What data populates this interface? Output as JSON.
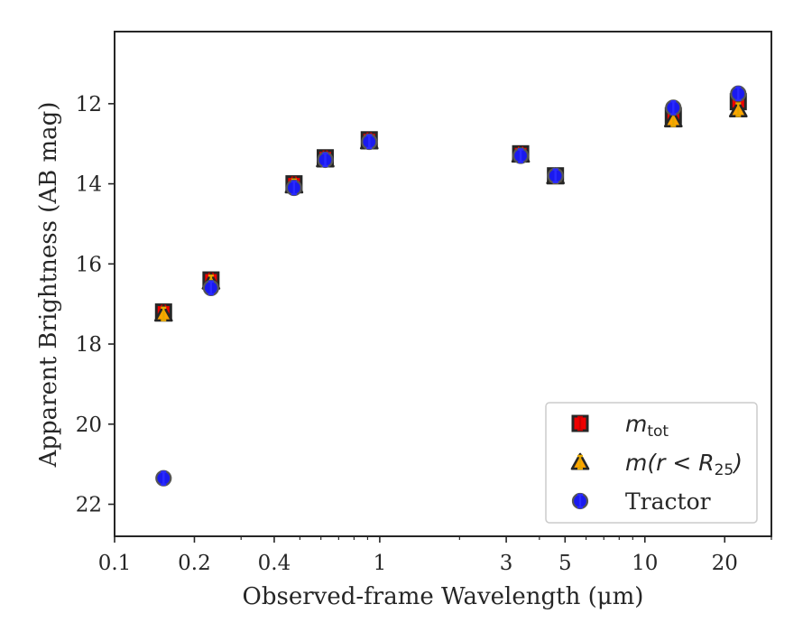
{
  "chart_data": {
    "type": "scatter",
    "xlabel": "Observed-frame Wavelength (μm)",
    "ylabel": "Apparent Brightness (AB mag)",
    "xscale": "log",
    "yinverted": true,
    "xlim": [
      0.1,
      30
    ],
    "ylim": [
      22.8,
      10.2
    ],
    "xticks": [
      {
        "value": 0.1,
        "label": "0.1"
      },
      {
        "value": 0.2,
        "label": "0.2"
      },
      {
        "value": 0.4,
        "label": "0.4"
      },
      {
        "value": 1,
        "label": "1"
      },
      {
        "value": 3,
        "label": "3"
      },
      {
        "value": 5,
        "label": "5"
      },
      {
        "value": 10,
        "label": "10"
      },
      {
        "value": 20,
        "label": "20"
      }
    ],
    "yticks": [
      {
        "value": 12,
        "label": "12"
      },
      {
        "value": 14,
        "label": "14"
      },
      {
        "value": 16,
        "label": "16"
      },
      {
        "value": 18,
        "label": "18"
      },
      {
        "value": 20,
        "label": "20"
      },
      {
        "value": 22,
        "label": "22"
      }
    ],
    "legend_position": "lower-right",
    "grid": false,
    "series": [
      {
        "name": "m_tot",
        "legend_main": "m",
        "legend_sub": "tot",
        "marker": "square",
        "color": "#ee0000",
        "errcolor": "#cc0000",
        "points": [
          {
            "x": 0.153,
            "y": 17.2
          },
          {
            "x": 0.231,
            "y": 16.4
          },
          {
            "x": 0.475,
            "y": 14.0
          },
          {
            "x": 0.623,
            "y": 13.35
          },
          {
            "x": 0.913,
            "y": 12.9
          },
          {
            "x": 3.4,
            "y": 13.25
          },
          {
            "x": 4.6,
            "y": 13.8
          },
          {
            "x": 12.8,
            "y": 12.3
          },
          {
            "x": 22.5,
            "y": 11.95
          }
        ]
      },
      {
        "name": "m(r < R_25)",
        "legend_main": "m(r < R",
        "legend_sub": "25",
        "legend_after": ")",
        "marker": "triangle",
        "color": "#ffa500",
        "errcolor": "#e6a800",
        "points": [
          {
            "x": 0.153,
            "y": 17.25
          },
          {
            "x": 0.231,
            "y": 16.45
          },
          {
            "x": 0.475,
            "y": 14.05
          },
          {
            "x": 0.623,
            "y": 13.4
          },
          {
            "x": 0.913,
            "y": 12.95
          },
          {
            "x": 3.4,
            "y": 13.28
          },
          {
            "x": 4.6,
            "y": 13.82
          },
          {
            "x": 12.8,
            "y": 12.4
          },
          {
            "x": 22.5,
            "y": 12.15
          }
        ]
      },
      {
        "name": "Tractor",
        "legend_main": "Tractor",
        "marker": "circle",
        "color": "#1a1aee",
        "errcolor": "#2a2aff",
        "points": [
          {
            "x": 0.153,
            "y": 21.35
          },
          {
            "x": 0.231,
            "y": 16.6
          },
          {
            "x": 0.475,
            "y": 14.1
          },
          {
            "x": 0.623,
            "y": 13.4
          },
          {
            "x": 0.913,
            "y": 12.95
          },
          {
            "x": 3.4,
            "y": 13.3
          },
          {
            "x": 4.6,
            "y": 13.8
          },
          {
            "x": 12.8,
            "y": 12.1
          },
          {
            "x": 22.5,
            "y": 11.75
          }
        ]
      }
    ]
  }
}
